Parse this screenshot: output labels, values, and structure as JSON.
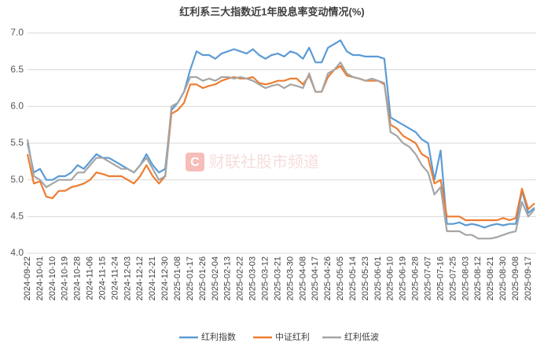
{
  "chart_data": {
    "type": "line",
    "title": "红利系三大指数近1年股息率变动情况(%)",
    "watermark": "财联社股市频道",
    "categories": [
      "2024-09-22",
      null,
      "2024-10-01",
      null,
      "2024-10-10",
      null,
      "2024-10-19",
      null,
      "2024-10-28",
      null,
      "2024-11-06",
      null,
      "2024-11-15",
      null,
      "2024-11-24",
      null,
      "2024-12-03",
      null,
      "2024-12-12",
      null,
      "2024-12-21",
      null,
      "2024-12-30",
      null,
      "2025-01-08",
      null,
      "2025-01-17",
      null,
      "2025-01-26",
      null,
      "2025-02-04",
      null,
      "2025-02-13",
      null,
      "2025-02-22",
      null,
      "2025-03-03",
      null,
      "2025-03-12",
      null,
      "2025-03-21",
      null,
      "2025-03-30",
      null,
      "2025-04-08",
      null,
      "2025-04-17",
      null,
      "2025-04-26",
      null,
      "2025-05-05",
      null,
      "2025-05-14",
      null,
      "2025-05-23",
      null,
      "2025-06-01",
      null,
      "2025-06-10",
      null,
      "2025-06-19",
      null,
      "2025-06-28",
      null,
      "2025-07-07",
      null,
      "2025-07-16",
      null,
      "2025-07-25",
      null,
      "2025-08-03",
      null,
      "2025-08-12",
      null,
      "2025-08-21",
      null,
      "2025-08-30",
      null,
      "2025-09-08",
      null,
      "2025-09-17",
      null
    ],
    "series": [
      {
        "name": "红利指数",
        "color": "#5b9bd5",
        "values": [
          5.5,
          5.1,
          5.15,
          5.0,
          5.0,
          5.05,
          5.05,
          5.1,
          5.2,
          5.15,
          5.25,
          5.35,
          5.3,
          5.3,
          5.25,
          5.2,
          5.15,
          5.1,
          5.2,
          5.35,
          5.2,
          5.1,
          5.15,
          5.95,
          6.05,
          6.2,
          6.5,
          6.75,
          6.7,
          6.7,
          6.65,
          6.72,
          6.75,
          6.78,
          6.75,
          6.72,
          6.78,
          6.7,
          6.65,
          6.7,
          6.72,
          6.68,
          6.75,
          6.72,
          6.65,
          6.8,
          6.6,
          6.6,
          6.8,
          6.85,
          6.9,
          6.75,
          6.7,
          6.7,
          6.68,
          6.68,
          6.68,
          6.65,
          5.85,
          5.8,
          5.75,
          5.7,
          5.65,
          5.55,
          5.5,
          5.0,
          5.4,
          4.4,
          4.4,
          4.42,
          4.38,
          4.4,
          4.38,
          4.35,
          4.38,
          4.4,
          4.38,
          4.4,
          4.4,
          4.85,
          4.55,
          4.62
        ]
      },
      {
        "name": "中证红利",
        "color": "#ed7d31",
        "values": [
          5.35,
          4.95,
          4.98,
          4.77,
          4.75,
          4.85,
          4.85,
          4.9,
          4.92,
          4.95,
          5.0,
          5.1,
          5.08,
          5.05,
          5.05,
          5.05,
          5.0,
          4.95,
          5.05,
          5.2,
          5.05,
          4.95,
          5.05,
          5.9,
          5.95,
          6.05,
          6.3,
          6.3,
          6.25,
          6.28,
          6.3,
          6.35,
          6.38,
          6.4,
          6.38,
          6.38,
          6.4,
          6.32,
          6.3,
          6.32,
          6.35,
          6.35,
          6.38,
          6.38,
          6.3,
          6.42,
          6.2,
          6.2,
          6.4,
          6.5,
          6.55,
          6.42,
          6.4,
          6.38,
          6.35,
          6.35,
          6.35,
          6.3,
          5.75,
          5.7,
          5.6,
          5.55,
          5.5,
          5.35,
          5.3,
          4.95,
          5.0,
          4.5,
          4.5,
          4.5,
          4.45,
          4.45,
          4.45,
          4.45,
          4.45,
          4.45,
          4.48,
          4.45,
          4.48,
          4.88,
          4.6,
          4.68
        ]
      },
      {
        "name": "红利低波",
        "color": "#a5a5a5",
        "values": [
          5.55,
          5.05,
          5.0,
          4.9,
          4.95,
          5.0,
          5.0,
          5.0,
          5.1,
          5.1,
          5.2,
          5.3,
          5.3,
          5.25,
          5.2,
          5.15,
          5.15,
          5.1,
          5.2,
          5.3,
          5.15,
          5.0,
          5.05,
          6.0,
          6.05,
          6.2,
          6.4,
          6.4,
          6.35,
          6.38,
          6.35,
          6.4,
          6.4,
          6.38,
          6.4,
          6.38,
          6.35,
          6.3,
          6.25,
          6.28,
          6.3,
          6.25,
          6.3,
          6.28,
          6.25,
          6.45,
          6.2,
          6.2,
          6.45,
          6.5,
          6.6,
          6.45,
          6.4,
          6.38,
          6.35,
          6.38,
          6.35,
          6.32,
          5.65,
          5.6,
          5.5,
          5.45,
          5.35,
          5.2,
          5.1,
          4.8,
          4.9,
          4.3,
          4.3,
          4.3,
          4.25,
          4.25,
          4.2,
          4.2,
          4.2,
          4.22,
          4.25,
          4.28,
          4.3,
          4.7,
          4.5,
          4.6
        ]
      }
    ],
    "ylim": [
      4.0,
      7.0
    ],
    "yticks": [
      {
        "value": 4.0,
        "label": "4.0"
      },
      {
        "value": 4.5,
        "label": "4.5"
      },
      {
        "value": 5.0,
        "label": "5.0"
      },
      {
        "value": 5.5,
        "label": "5.5"
      },
      {
        "value": 6.0,
        "label": "6.0"
      },
      {
        "value": 6.5,
        "label": "6.5"
      },
      {
        "value": 7.0,
        "label": "7.0"
      }
    ],
    "grid": true
  }
}
